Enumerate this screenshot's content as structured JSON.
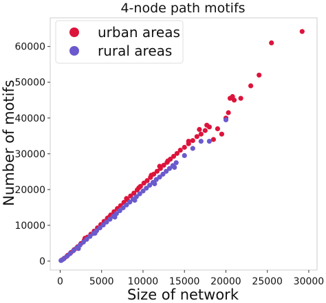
{
  "chart_data": {
    "type": "scatter",
    "title": "4-node path motifs",
    "xlabel": "Size of network",
    "ylabel": "Number of motifs",
    "xlim": [
      -1200,
      31000
    ],
    "ylim": [
      -2500,
      68000
    ],
    "xticks": [
      0,
      5000,
      10000,
      15000,
      20000,
      25000,
      30000
    ],
    "yticks": [
      0,
      10000,
      20000,
      30000,
      40000,
      50000,
      60000
    ],
    "grid": false,
    "legend": "top-left",
    "series": [
      {
        "name": "urban areas",
        "color": "#dc143c",
        "points": [
          [
            200,
            300
          ],
          [
            500,
            800
          ],
          [
            900,
            1600
          ],
          [
            1300,
            2400
          ],
          [
            1700,
            3200
          ],
          [
            2100,
            4000
          ],
          [
            2500,
            4900
          ],
          [
            2900,
            5800
          ],
          [
            3300,
            6700
          ],
          [
            3700,
            7500
          ],
          [
            4100,
            8400
          ],
          [
            4500,
            9300
          ],
          [
            4900,
            10200
          ],
          [
            5300,
            11100
          ],
          [
            5700,
            12000
          ],
          [
            6100,
            12900
          ],
          [
            6500,
            13800
          ],
          [
            6900,
            14700
          ],
          [
            7300,
            15500
          ],
          [
            7700,
            16400
          ],
          [
            8100,
            17200
          ],
          [
            8500,
            18200
          ],
          [
            8900,
            19000
          ],
          [
            9300,
            19900
          ],
          [
            9700,
            20900
          ],
          [
            10100,
            21800
          ],
          [
            10500,
            22500
          ],
          [
            10900,
            23400
          ],
          [
            11300,
            24300
          ],
          [
            11700,
            25100
          ],
          [
            12100,
            25900
          ],
          [
            12500,
            26800
          ],
          [
            12900,
            27600
          ],
          [
            13300,
            28500
          ],
          [
            13700,
            29300
          ],
          [
            14100,
            30100
          ],
          [
            14500,
            31000
          ],
          [
            15000,
            31800
          ],
          [
            15500,
            32800
          ],
          [
            16000,
            33700
          ],
          [
            16500,
            34800
          ],
          [
            17000,
            35500
          ],
          [
            17500,
            36500
          ],
          [
            18000,
            37500
          ],
          [
            18500,
            34000
          ],
          [
            19500,
            35500
          ],
          [
            20000,
            40000
          ],
          [
            20300,
            41500
          ],
          [
            20500,
            45500
          ],
          [
            20800,
            46000
          ],
          [
            21000,
            45000
          ],
          [
            21800,
            45500
          ],
          [
            23000,
            49000
          ],
          [
            24000,
            52000
          ],
          [
            25500,
            61000
          ],
          [
            29200,
            64200
          ],
          [
            3000,
            6400
          ],
          [
            6000,
            12500
          ],
          [
            8000,
            17500
          ],
          [
            11000,
            24000
          ],
          [
            13000,
            28000
          ],
          [
            15500,
            33500
          ],
          [
            17700,
            38000
          ],
          [
            12000,
            26500
          ],
          [
            9500,
            20500
          ],
          [
            16800,
            36800
          ],
          [
            19000,
            37000
          ]
        ]
      },
      {
        "name": "rural areas",
        "color": "#6a5acd",
        "points": [
          [
            100,
            150
          ],
          [
            400,
            600
          ],
          [
            800,
            1300
          ],
          [
            1200,
            2100
          ],
          [
            1600,
            2900
          ],
          [
            2000,
            3700
          ],
          [
            2400,
            4500
          ],
          [
            2800,
            5300
          ],
          [
            3200,
            6100
          ],
          [
            3600,
            6900
          ],
          [
            4000,
            7700
          ],
          [
            4400,
            8500
          ],
          [
            4800,
            9300
          ],
          [
            5200,
            10100
          ],
          [
            5600,
            10900
          ],
          [
            6000,
            11700
          ],
          [
            6400,
            12500
          ],
          [
            6800,
            13300
          ],
          [
            7200,
            14100
          ],
          [
            7600,
            14900
          ],
          [
            8000,
            15700
          ],
          [
            8400,
            16500
          ],
          [
            8800,
            17300
          ],
          [
            9200,
            18000
          ],
          [
            9600,
            18800
          ],
          [
            10000,
            19600
          ],
          [
            10400,
            20400
          ],
          [
            10800,
            21200
          ],
          [
            11200,
            22000
          ],
          [
            11600,
            22800
          ],
          [
            12000,
            23500
          ],
          [
            12400,
            24300
          ],
          [
            12800,
            25100
          ],
          [
            13200,
            25900
          ],
          [
            13600,
            26700
          ],
          [
            14000,
            27500
          ],
          [
            15000,
            29500
          ],
          [
            16000,
            31500
          ],
          [
            17000,
            33500
          ],
          [
            18000,
            33500
          ],
          [
            20000,
            39500
          ],
          [
            2200,
            3500
          ],
          [
            4200,
            7800
          ],
          [
            6600,
            12300
          ],
          [
            9000,
            17000
          ],
          [
            11400,
            21600
          ],
          [
            13800,
            26200
          ]
        ]
      }
    ]
  }
}
